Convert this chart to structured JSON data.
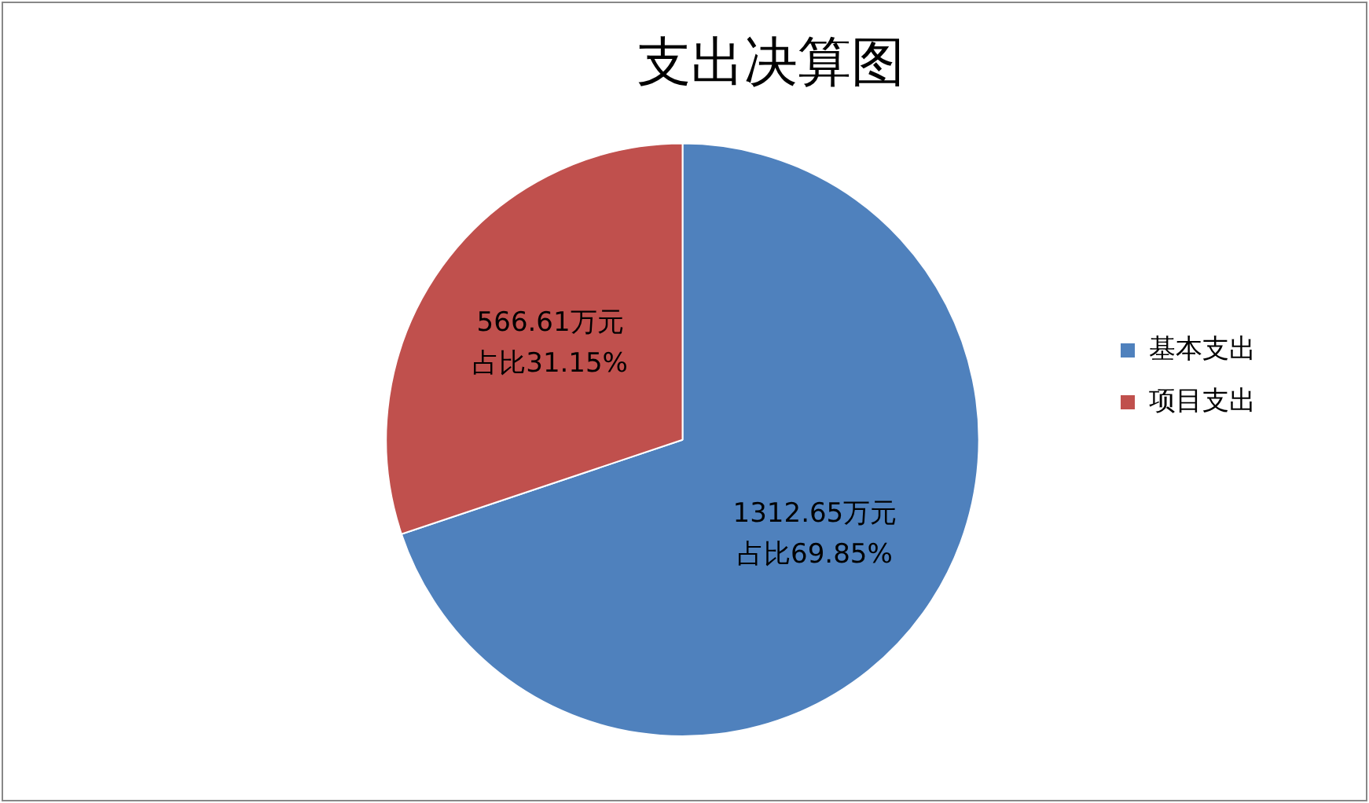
{
  "chart_data": {
    "type": "pie",
    "title": "支出决算图",
    "categories": [
      "基本支出",
      "项目支出"
    ],
    "values": [
      1312.65,
      566.61
    ],
    "colors": [
      "#4f81bd",
      "#c0504d"
    ],
    "value_labels": [
      "1312.65万元占比69.85%",
      "566.61万元占比31.15%"
    ],
    "legend": "right"
  }
}
